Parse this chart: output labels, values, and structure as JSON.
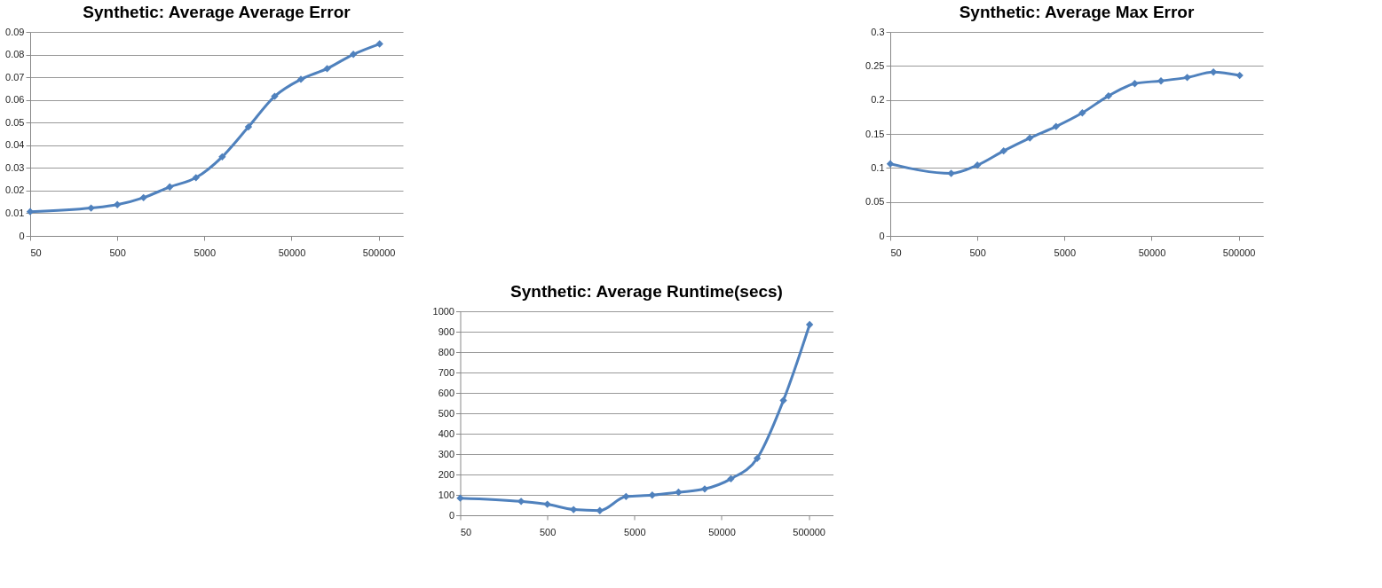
{
  "chart_data": [
    {
      "type": "line",
      "title": "Synthetic: Average Average Error",
      "x": [
        50,
        250,
        500,
        1000,
        2000,
        4000,
        8000,
        16000,
        32000,
        64000,
        128000,
        256000,
        512000
      ],
      "series": [
        {
          "color": "#4f81bd",
          "values": [
            0.0107,
            0.0123,
            0.0138,
            0.0169,
            0.0216,
            0.0257,
            0.0349,
            0.0481,
            0.0616,
            0.0691,
            0.0738,
            0.0801,
            0.0847
          ]
        }
      ],
      "xlim": [
        50,
        950000
      ],
      "xticks": [
        50,
        500,
        5000,
        50000,
        500000
      ],
      "ylim": [
        0,
        0.09
      ],
      "yticks": [
        0,
        0.01,
        0.02,
        0.03,
        0.04,
        0.05,
        0.06,
        0.07,
        0.08,
        0.09
      ],
      "log": "x",
      "grid": "y",
      "marker": "diamond",
      "line_style": "solid"
    },
    {
      "type": "line",
      "title": "Synthetic: Average Max Error",
      "x": [
        50,
        250,
        500,
        1000,
        2000,
        4000,
        8000,
        16000,
        32000,
        64000,
        128000,
        256000,
        512000
      ],
      "series": [
        {
          "color": "#4f81bd",
          "values": [
            0.106,
            0.092,
            0.104,
            0.125,
            0.144,
            0.161,
            0.181,
            0.206,
            0.224,
            0.228,
            0.233,
            0.241,
            0.236
          ]
        }
      ],
      "xlim": [
        50,
        950000
      ],
      "xticks": [
        50,
        500,
        5000,
        50000,
        500000
      ],
      "ylim": [
        0,
        0.3
      ],
      "yticks": [
        0,
        0.05,
        0.1,
        0.15,
        0.2,
        0.25,
        0.3
      ],
      "log": "x",
      "grid": "y",
      "marker": "diamond",
      "line_style": "solid"
    },
    {
      "type": "line",
      "title": "Synthetic: Average Runtime(secs)",
      "x": [
        50,
        250,
        500,
        1000,
        2000,
        4000,
        8000,
        16000,
        32000,
        64000,
        128000,
        256000,
        512000
      ],
      "series": [
        {
          "color": "#4f81bd",
          "values": [
            84,
            68,
            54,
            28,
            23,
            92,
            99,
            113,
            129,
            179,
            279,
            563,
            935
          ]
        }
      ],
      "xlim": [
        50,
        950000
      ],
      "xticks": [
        50,
        500,
        5000,
        50000,
        500000
      ],
      "ylim": [
        0,
        1000
      ],
      "yticks": [
        0,
        100,
        200,
        300,
        400,
        500,
        600,
        700,
        800,
        900,
        1000
      ],
      "log": "x",
      "grid": "y",
      "marker": "diamond",
      "line_style": "solid"
    }
  ]
}
